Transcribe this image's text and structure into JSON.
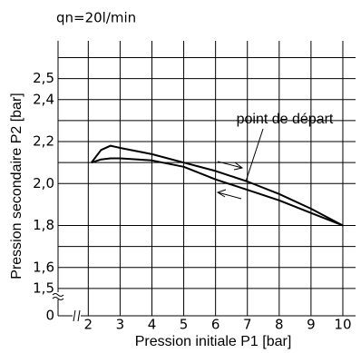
{
  "chart_data": {
    "type": "line",
    "title": "qn=20l/min",
    "x_label": "Pression initiale P1 [bar]",
    "y_label": "Pression secondaire P2 [bar]",
    "origin_label": "0",
    "annotation": "point de départ",
    "x": [
      2.1,
      2.4,
      2.7,
      3,
      4,
      5,
      6,
      7,
      8,
      9,
      10
    ],
    "series": [
      {
        "color": "#000000",
        "values": [
          2.1,
          2.16,
          2.18,
          2.17,
          2.14,
          2.1,
          2.06,
          2.01,
          1.95,
          1.88,
          1.8
        ]
      },
      {
        "color": "#000000",
        "values": [
          2.1,
          2.115,
          2.12,
          2.12,
          2.11,
          2.08,
          2.02,
          1.97,
          1.92,
          1.86,
          1.8
        ]
      }
    ],
    "xlim": [
      1.05,
      10.4
    ],
    "ylim": [
      1.37,
      2.68
    ],
    "xticks": [
      2,
      3,
      4,
      5,
      6,
      7,
      8,
      9,
      10
    ],
    "yticks": [
      {
        "value": 1.5,
        "label": "1,5"
      },
      {
        "value": 1.6,
        "label": "1,6"
      },
      {
        "value": 1.8,
        "label": "1,8"
      },
      {
        "value": 2.0,
        "label": "2,0"
      },
      {
        "value": 2.2,
        "label": "2,2"
      },
      {
        "value": 2.4,
        "label": "2,4"
      },
      {
        "value": 2.5,
        "label": "2,5"
      }
    ],
    "minor_yticks": [
      1.7,
      2.1,
      2.3,
      2.6
    ],
    "grid": true
  }
}
